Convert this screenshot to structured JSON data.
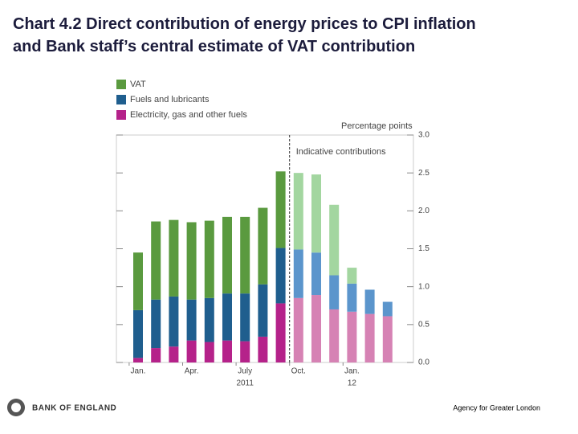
{
  "title_lines": [
    "Chart 4.2  Direct contribution of energy prices to CPI inflation",
    "and Bank staff’s central estimate of VAT contribution"
  ],
  "chart_data": {
    "type": "stacked_bar",
    "y_axis_label": "Percentage points",
    "annotation": "Indicative contributions",
    "indicative_from": "Oct.",
    "categories": [
      "Jan.",
      null,
      null,
      "Apr.",
      null,
      null,
      "July",
      null,
      null,
      "Oct.",
      null,
      null,
      "Jan.",
      null,
      null
    ],
    "year_labels": [
      null,
      null,
      null,
      null,
      null,
      null,
      "2011",
      null,
      null,
      null,
      null,
      null,
      "12",
      null,
      null
    ],
    "series": [
      {
        "name": "VAT",
        "color": "#5a9a3f",
        "light_color": "#a3d6a0",
        "values": [
          0.76,
          1.03,
          1.01,
          1.02,
          1.02,
          1.01,
          1.01,
          1.01,
          1.01,
          1.01,
          1.03,
          0.93,
          0.21,
          0,
          0
        ]
      },
      {
        "name": "Fuels and lubricants",
        "color": "#1f5e8e",
        "light_color": "#5b95cc",
        "values": [
          0.63,
          0.64,
          0.66,
          0.54,
          0.58,
          0.62,
          0.63,
          0.69,
          0.73,
          0.64,
          0.56,
          0.45,
          0.37,
          0.32,
          0.19
        ]
      },
      {
        "name": "Electricity, gas and other fuels",
        "color": "#b5228a",
        "light_color": "#d682b4",
        "values": [
          0.06,
          0.19,
          0.21,
          0.29,
          0.27,
          0.29,
          0.28,
          0.34,
          0.78,
          0.85,
          0.89,
          0.7,
          0.67,
          0.64,
          0.61
        ]
      }
    ],
    "ylim": [
      0,
      3
    ],
    "yticks": [
      {
        "value": 0,
        "label": "0.0"
      },
      {
        "value": 0.5,
        "label": "0.5"
      },
      {
        "value": 1,
        "label": "1.0"
      },
      {
        "value": 1.5,
        "label": "1.5"
      },
      {
        "value": 2,
        "label": "2.0"
      },
      {
        "value": 2.5,
        "label": "2.5"
      },
      {
        "value": 3,
        "label": "3.0"
      }
    ]
  },
  "footer": {
    "logo": "BANK OF ENGLAND",
    "source": "Agency for Greater London"
  }
}
